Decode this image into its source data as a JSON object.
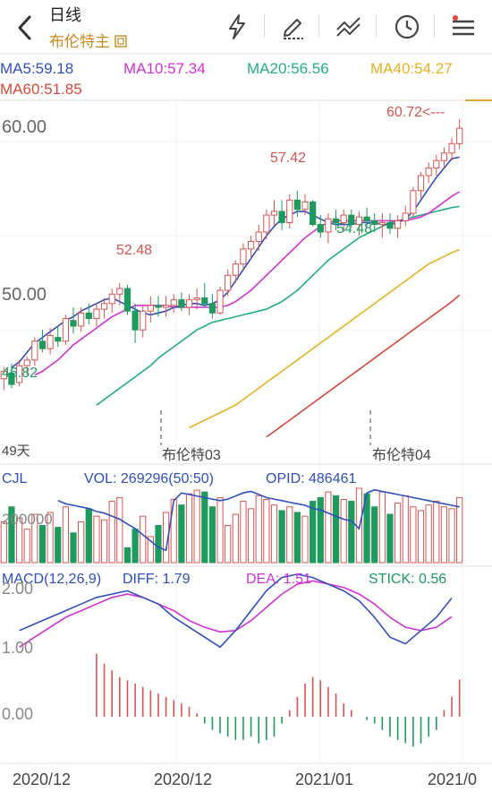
{
  "header": {
    "title": "日线",
    "subtitle": "布伦特主",
    "subtitle_icon": "box-icon",
    "toolbar_icons": [
      "lightning-icon",
      "draw-icon",
      "compare-icon",
      "clock-icon",
      "menu-icon"
    ]
  },
  "colors": {
    "up": "#d9534f",
    "down": "#1e9a5e",
    "ma5": "#2f4fc0",
    "ma10": "#d431d4",
    "ma20": "#22b07a",
    "ma40": "#e6b222",
    "ma60": "#d9473a",
    "accent": "#e8a33c"
  },
  "ma_legend": [
    {
      "label": "MA5:59.18",
      "color": "#2f4fc0"
    },
    {
      "label": "MA10:57.34",
      "color": "#d431d4"
    },
    {
      "label": "MA20:56.56",
      "color": "#22b07a"
    },
    {
      "label": "MA40:54.27",
      "color": "#e6b222"
    },
    {
      "label": "MA60:51.85",
      "color": "#d9473a"
    }
  ],
  "price_axis": {
    "ticks": [
      "60.00",
      "50.00"
    ]
  },
  "annotations": {
    "high1": "52.48",
    "high2": "57.42",
    "low1": "54.48",
    "low_start": "46.82",
    "last": "60.72<---",
    "days": "49天",
    "contract1": "布伦特03",
    "contract2": "布伦特04"
  },
  "volume_panel": {
    "name": "CJL",
    "vol": "VOL: 269296(50:50)",
    "opid": "OPID: 486461",
    "axis": "200000"
  },
  "macd_panel": {
    "name": "MACD(12,26,9)",
    "diff": "DIFF: 1.79",
    "dea": "DEA: 1.51",
    "stick": "STICK: 0.56",
    "axis": [
      "2.00",
      "1.00",
      "0.00"
    ]
  },
  "date_axis": [
    "2020/12",
    "2020/12",
    "2021/01",
    "2021/0"
  ],
  "chart_data": {
    "type": "candlestick",
    "ylim": [
      44.2,
      62.2
    ],
    "candles": [
      [
        47.4,
        48.0,
        46.8,
        47.8
      ],
      [
        47.7,
        48.2,
        46.9,
        47.1
      ],
      [
        47.2,
        48.4,
        47.0,
        48.1
      ],
      [
        48.1,
        48.6,
        47.6,
        48.4
      ],
      [
        48.4,
        49.6,
        48.1,
        49.4
      ],
      [
        49.4,
        50.0,
        48.8,
        49.0
      ],
      [
        49.0,
        50.1,
        48.7,
        49.7
      ],
      [
        49.6,
        50.2,
        49.1,
        49.4
      ],
      [
        49.4,
        50.8,
        49.2,
        50.6
      ],
      [
        50.5,
        51.2,
        49.8,
        50.2
      ],
      [
        50.2,
        51.2,
        49.9,
        50.9
      ],
      [
        50.9,
        51.4,
        50.3,
        50.6
      ],
      [
        50.6,
        51.4,
        50.2,
        51.1
      ],
      [
        51.1,
        51.7,
        50.6,
        51.4
      ],
      [
        51.4,
        52.2,
        50.9,
        51.9
      ],
      [
        51.9,
        52.5,
        51.3,
        52.2
      ],
      [
        52.2,
        52.4,
        50.8,
        51.0
      ],
      [
        51.0,
        51.4,
        49.3,
        50.0
      ],
      [
        50.0,
        51.3,
        49.6,
        51.0
      ],
      [
        51.0,
        51.8,
        50.4,
        51.3
      ],
      [
        51.3,
        51.8,
        50.7,
        51.2
      ],
      [
        51.2,
        51.8,
        50.7,
        51.3
      ],
      [
        51.3,
        51.9,
        50.9,
        51.6
      ],
      [
        51.6,
        52.0,
        51.0,
        51.2
      ],
      [
        51.2,
        51.9,
        50.8,
        51.6
      ],
      [
        51.6,
        52.2,
        51.1,
        51.7
      ],
      [
        51.7,
        52.5,
        51.2,
        51.4
      ],
      [
        51.4,
        51.9,
        50.6,
        50.9
      ],
      [
        50.9,
        52.3,
        50.8,
        52.1
      ],
      [
        52.1,
        53.2,
        51.8,
        52.9
      ],
      [
        52.9,
        53.7,
        52.5,
        53.5
      ],
      [
        53.5,
        54.6,
        53.2,
        54.3
      ],
      [
        54.3,
        55.0,
        53.8,
        54.7
      ],
      [
        54.7,
        55.6,
        54.2,
        55.2
      ],
      [
        55.2,
        56.4,
        54.8,
        56.1
      ],
      [
        56.1,
        56.9,
        55.5,
        56.3
      ],
      [
        56.3,
        56.9,
        55.3,
        55.7
      ],
      [
        55.7,
        57.2,
        55.4,
        56.9
      ],
      [
        56.9,
        57.4,
        56.0,
        56.4
      ],
      [
        56.4,
        57.2,
        56.1,
        56.8
      ],
      [
        56.8,
        56.9,
        55.5,
        55.6
      ],
      [
        55.6,
        56.1,
        54.9,
        55.2
      ],
      [
        55.2,
        56.2,
        54.6,
        55.9
      ],
      [
        55.9,
        56.4,
        55.3,
        55.7
      ],
      [
        55.7,
        56.4,
        55.2,
        56.1
      ],
      [
        56.1,
        56.4,
        55.4,
        55.6
      ],
      [
        55.6,
        56.3,
        55.0,
        56.0
      ],
      [
        56.0,
        56.5,
        55.5,
        55.8
      ],
      [
        55.8,
        56.2,
        55.2,
        55.6
      ],
      [
        55.6,
        56.2,
        54.9,
        55.7
      ],
      [
        55.7,
        56.2,
        55.1,
        55.4
      ],
      [
        55.4,
        56.1,
        54.9,
        55.8
      ],
      [
        55.8,
        56.6,
        55.5,
        56.2
      ],
      [
        56.2,
        57.6,
        56.0,
        57.4
      ],
      [
        57.4,
        58.4,
        57.0,
        58.2
      ],
      [
        58.2,
        58.9,
        57.8,
        58.6
      ],
      [
        58.6,
        59.3,
        58.2,
        59.0
      ],
      [
        59.0,
        59.7,
        58.6,
        59.4
      ],
      [
        59.4,
        60.2,
        59.0,
        59.9
      ],
      [
        59.9,
        61.2,
        59.6,
        60.72
      ]
    ],
    "ma5": [
      48.0,
      48.3,
      48.8,
      49.3,
      49.6,
      49.9,
      50.2,
      50.5,
      50.7,
      51.0,
      51.2,
      51.4,
      51.6,
      51.7,
      51.5,
      51.3,
      51.1,
      50.9,
      50.8,
      50.9,
      51.0,
      51.2,
      51.3,
      51.4,
      51.4,
      51.3,
      51.4,
      51.6,
      52.0,
      52.6,
      53.2,
      53.8,
      54.4,
      55.0,
      55.5,
      55.9,
      56.1,
      56.3,
      56.3,
      56.1,
      55.9,
      55.7,
      55.6,
      55.6,
      55.6,
      55.7,
      55.7,
      55.7,
      55.6,
      55.6,
      55.7,
      55.9,
      56.3,
      56.9,
      57.5,
      58.1,
      58.6,
      59.1,
      59.18
    ],
    "ma10": [
      47.6,
      47.8,
      48.1,
      48.4,
      48.8,
      49.2,
      49.5,
      49.8,
      50.1,
      50.4,
      50.7,
      50.9,
      51.1,
      51.3,
      51.3,
      51.3,
      51.3,
      51.3,
      51.2,
      51.2,
      51.2,
      51.2,
      51.2,
      51.2,
      51.2,
      51.3,
      51.5,
      51.8,
      52.1,
      52.5,
      52.9,
      53.3,
      53.7,
      54.1,
      54.5,
      54.9,
      55.2,
      55.5,
      55.7,
      55.8,
      55.8,
      55.8,
      55.8,
      55.8,
      55.8,
      55.8,
      55.8,
      55.8,
      55.8,
      55.9,
      56.0,
      56.2,
      56.5,
      56.8,
      57.1,
      57.34
    ],
    "ma20": [
      46.0,
      46.3,
      46.6,
      46.9,
      47.2,
      47.5,
      47.8,
      48.1,
      48.5,
      48.8,
      49.1,
      49.4,
      49.7,
      50.0,
      50.2,
      50.4,
      50.5,
      50.6,
      50.7,
      50.8,
      50.9,
      51.0,
      51.1,
      51.3,
      51.5,
      51.8,
      52.1,
      52.5,
      52.9,
      53.3,
      53.7,
      54.0,
      54.3,
      54.6,
      54.9,
      55.1,
      55.3,
      55.5,
      55.7,
      55.8,
      55.9,
      56.0,
      56.1,
      56.2,
      56.3,
      56.4,
      56.5,
      56.56
    ],
    "ma40": [
      44.8,
      45.0,
      45.2,
      45.4,
      45.6,
      45.8,
      46.0,
      46.3,
      46.6,
      46.9,
      47.2,
      47.5,
      47.8,
      48.1,
      48.4,
      48.7,
      49.0,
      49.3,
      49.6,
      49.9,
      50.2,
      50.5,
      50.8,
      51.1,
      51.4,
      51.7,
      52.0,
      52.3,
      52.6,
      52.9,
      53.2,
      53.5,
      53.7,
      53.9,
      54.1,
      54.27
    ],
    "ma60": [
      44.3,
      44.6,
      44.9,
      45.2,
      45.5,
      45.8,
      46.1,
      46.4,
      46.7,
      47.0,
      47.3,
      47.6,
      47.9,
      48.2,
      48.5,
      48.8,
      49.1,
      49.4,
      49.7,
      50.0,
      50.3,
      50.6,
      50.9,
      51.2,
      51.5,
      51.85
    ],
    "volume": [
      22,
      30,
      24,
      18,
      26,
      20,
      27,
      19,
      30,
      16,
      22,
      29,
      25,
      23,
      33,
      35,
      8,
      18,
      25,
      14,
      20,
      27,
      34,
      31,
      37,
      39,
      38,
      30,
      35,
      20,
      26,
      33,
      29,
      36,
      34,
      31,
      28,
      30,
      27,
      25,
      33,
      35,
      38,
      36,
      34,
      33,
      40,
      37,
      30,
      38,
      26,
      32,
      36,
      30,
      28,
      31,
      33,
      30,
      29,
      35
    ],
    "opid_line": [
      40,
      38,
      37,
      36,
      35,
      33,
      32,
      30,
      28,
      25,
      22,
      18,
      14,
      10,
      8,
      40,
      45,
      44,
      43,
      42,
      41,
      40,
      41,
      43,
      45,
      46,
      44,
      42,
      41,
      40,
      39,
      38,
      37,
      35,
      34,
      32,
      30,
      28,
      27,
      22,
      45,
      47,
      46,
      45,
      44,
      43,
      42,
      41,
      40,
      39,
      38,
      37,
      36
    ],
    "macd_stick": [
      0.95,
      0.8,
      0.7,
      0.6,
      0.55,
      0.5,
      0.45,
      0.4,
      0.35,
      0.3,
      0.25,
      0.2,
      0.15,
      0.05,
      -0.1,
      -0.2,
      -0.25,
      -0.3,
      -0.35,
      -0.35,
      -0.3,
      -0.4,
      -0.35,
      -0.3,
      -0.1,
      0.1,
      0.3,
      0.5,
      0.6,
      0.55,
      0.45,
      0.35,
      0.2,
      0.1,
      0.0,
      -0.05,
      -0.1,
      -0.2,
      -0.3,
      -0.35,
      -0.4,
      -0.45,
      -0.4,
      -0.3,
      -0.2,
      0.1,
      0.3,
      0.56
    ],
    "diff_line": [
      1.3,
      1.4,
      1.5,
      1.6,
      1.7,
      1.8,
      1.85,
      1.9,
      1.8,
      1.7,
      1.5,
      1.35,
      1.2,
      1.05,
      1.3,
      1.6,
      1.9,
      2.1,
      2.15,
      2.1,
      2.0,
      1.9,
      1.75,
      1.5,
      1.2,
      1.1,
      1.3,
      1.5,
      1.79
    ],
    "dea_line": [
      1.05,
      1.2,
      1.35,
      1.5,
      1.6,
      1.7,
      1.8,
      1.85,
      1.8,
      1.7,
      1.6,
      1.45,
      1.35,
      1.28,
      1.3,
      1.45,
      1.65,
      1.85,
      2.0,
      2.05,
      2.0,
      1.95,
      1.85,
      1.7,
      1.5,
      1.35,
      1.3,
      1.35,
      1.51
    ]
  }
}
